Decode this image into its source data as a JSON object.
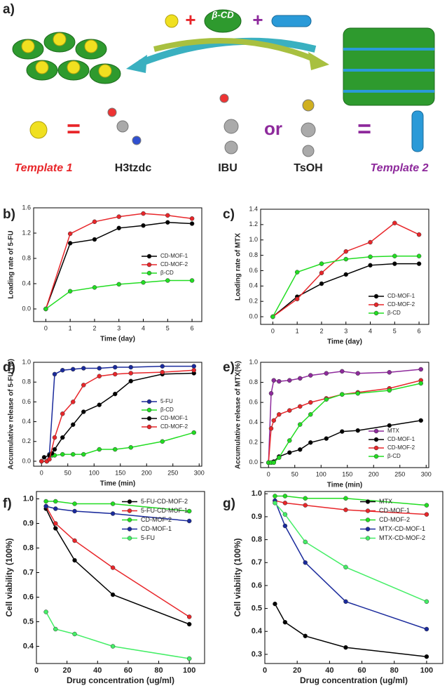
{
  "scheme": {
    "panel": "a)",
    "cd_label": "β-CD",
    "plus_1": "+",
    "plus_2": "+",
    "equals_1": "=",
    "equals_2": "=",
    "molecule_1": "H3tzdc",
    "molecule_2": "IBU",
    "or": "or",
    "molecule_3": "TsOH",
    "template_1": "Template 1",
    "template_2": "Template 2"
  },
  "chart_data": [
    {
      "type": "line",
      "panel": "b)",
      "x_label": "Time (day)",
      "y_label": "Loading rate of 5-FU",
      "x": [
        0,
        1,
        2,
        3,
        4,
        5,
        6
      ],
      "xlim": [
        -0.5,
        6.4
      ],
      "xticks": [
        0,
        1,
        2,
        3,
        4,
        5,
        6
      ],
      "ylim": [
        -0.2,
        1.6
      ],
      "yticks": [
        {
          "value": 0,
          "label": "0.0"
        },
        0.4,
        0.8,
        1.2,
        1.6
      ],
      "legend": "center right",
      "series": [
        {
          "name": "CD-MOF-1",
          "color": "#000000",
          "values": [
            0,
            1.04,
            1.1,
            1.28,
            1.32,
            1.37,
            1.35
          ]
        },
        {
          "name": "CD-MOF-2",
          "color": "#e8262a",
          "values": [
            0,
            1.19,
            1.38,
            1.46,
            1.51,
            1.48,
            1.43
          ]
        },
        {
          "name": "β-CD",
          "color": "#22dd22",
          "values": [
            0,
            0.28,
            0.34,
            0.39,
            0.42,
            0.45,
            0.45
          ]
        }
      ]
    },
    {
      "type": "line",
      "panel": "c)",
      "x_label": "Time (day)",
      "y_label": "Loading rate of MTX",
      "x": [
        0,
        1,
        2,
        3,
        4,
        5,
        6
      ],
      "xlim": [
        -0.5,
        6.4
      ],
      "xticks": [
        0,
        1,
        2,
        3,
        4,
        5,
        6
      ],
      "ylim": [
        -0.1,
        1.4
      ],
      "yticks": [
        {
          "value": 0,
          "label": "0.0"
        },
        0.2,
        0.4,
        0.6,
        0.8,
        {
          "value": 1,
          "label": "1.0"
        },
        1.2,
        1.4
      ],
      "legend": "lower right",
      "series": [
        {
          "name": "CD-MOF-1",
          "color": "#000000",
          "values": [
            0,
            0.26,
            0.43,
            0.55,
            0.67,
            0.69,
            0.69
          ]
        },
        {
          "name": "CD-MOF-2",
          "color": "#e8262a",
          "values": [
            0,
            0.23,
            0.57,
            0.85,
            0.97,
            1.22,
            1.07
          ]
        },
        {
          "name": "β-CD",
          "color": "#22dd22",
          "values": [
            0,
            0.58,
            0.69,
            0.75,
            0.78,
            0.79,
            0.79
          ]
        }
      ]
    },
    {
      "type": "line",
      "panel": "d)",
      "x_label": "Time (min)",
      "y_label": "Accumulative release of 5-FU (%)",
      "xlim": [
        -15,
        305
      ],
      "xticks": [
        0,
        50,
        100,
        150,
        200,
        250,
        300
      ],
      "ylim": [
        -0.05,
        1.0
      ],
      "yticks": [
        {
          "value": 0,
          "label": "0.0"
        },
        0.2,
        0.4,
        0.6,
        0.8,
        {
          "value": 1,
          "label": "1.0"
        }
      ],
      "legend": "center right",
      "series": [
        {
          "name": "5-FU",
          "color": "#1a2a9c",
          "x": [
            0,
            10,
            15,
            25,
            40,
            60,
            80,
            110,
            140,
            170,
            230,
            290
          ],
          "values": [
            0,
            0,
            0.07,
            0.88,
            0.92,
            0.93,
            0.94,
            0.94,
            0.95,
            0.95,
            0.96,
            0.96
          ]
        },
        {
          "name": "β-CD",
          "color": "#22dd22",
          "x": [
            0,
            10,
            20,
            25,
            40,
            60,
            80,
            110,
            140,
            170,
            230,
            290
          ],
          "values": [
            0,
            0,
            0.06,
            0.06,
            0.07,
            0.07,
            0.07,
            0.12,
            0.12,
            0.14,
            0.2,
            0.29
          ]
        },
        {
          "name": "CD-MOF-1",
          "color": "#000000",
          "x": [
            5,
            15,
            20,
            25,
            40,
            60,
            80,
            110,
            140,
            170,
            230,
            290
          ],
          "values": [
            0.04,
            0.06,
            0.08,
            0.12,
            0.24,
            0.37,
            0.5,
            0.57,
            0.68,
            0.81,
            0.88,
            0.89
          ]
        },
        {
          "name": "CD-MOF-2",
          "color": "#e8262a",
          "x": [
            0,
            10,
            15,
            25,
            40,
            60,
            80,
            110,
            140,
            170,
            230,
            290
          ],
          "values": [
            0,
            0,
            0.02,
            0.24,
            0.48,
            0.6,
            0.77,
            0.86,
            0.88,
            0.89,
            0.9,
            0.92
          ]
        }
      ]
    },
    {
      "type": "line",
      "panel": "e)",
      "x_label": "Time (min)",
      "y_label": "Accumulative release of MTX(%)",
      "x": [
        0,
        5,
        10,
        20,
        40,
        60,
        80,
        110,
        140,
        170,
        230,
        290
      ],
      "xlim": [
        -15,
        305
      ],
      "xticks": [
        0,
        50,
        100,
        150,
        200,
        250,
        300
      ],
      "ylim": [
        -0.05,
        1.0
      ],
      "yticks": [
        {
          "value": 0,
          "label": "0.0"
        },
        0.2,
        0.4,
        0.6,
        0.8,
        {
          "value": 1,
          "label": "1.0"
        }
      ],
      "legend": "lower right",
      "series": [
        {
          "name": "MTX",
          "color": "#8e2a9c",
          "values": [
            0,
            0.69,
            0.82,
            0.81,
            0.82,
            0.84,
            0.87,
            0.89,
            0.91,
            0.89,
            0.9,
            0.93
          ]
        },
        {
          "name": "CD-MOF-1",
          "color": "#000000",
          "values": [
            0,
            0,
            0.01,
            0.06,
            0.1,
            0.13,
            0.2,
            0.24,
            0.31,
            0.32,
            0.37,
            0.42
          ]
        },
        {
          "name": "CD-MOF-2",
          "color": "#e8262a",
          "values": [
            0,
            0.34,
            0.42,
            0.48,
            0.52,
            0.56,
            0.6,
            0.64,
            0.68,
            0.7,
            0.74,
            0.82
          ]
        },
        {
          "name": "β-CD",
          "color": "#22dd22",
          "values": [
            0,
            0,
            0,
            0.05,
            0.22,
            0.38,
            0.48,
            0.63,
            0.68,
            0.69,
            0.72,
            0.79
          ]
        }
      ]
    },
    {
      "type": "line",
      "panel": "f)",
      "x_label": "Drug concentration (ug/ml)",
      "y_label": "Cell viability (100%)",
      "x": [
        6.25,
        12.5,
        25,
        50,
        100
      ],
      "xlim": [
        0,
        110
      ],
      "xticks": [
        0,
        20,
        40,
        60,
        80,
        100
      ],
      "ylim": [
        0.33,
        1.03
      ],
      "yticks": [
        0.4,
        0.5,
        0.6,
        0.7,
        0.8,
        0.9,
        {
          "value": 1,
          "label": "1.0"
        }
      ],
      "legend": "upper right",
      "series": [
        {
          "name": "5-FU-CD-MOF-2",
          "color": "#000000",
          "values": [
            0.96,
            0.88,
            0.75,
            0.61,
            0.49
          ]
        },
        {
          "name": "5-FU-CD-MOF-1",
          "color": "#e8262a",
          "values": [
            0.97,
            0.9,
            0.83,
            0.72,
            0.52
          ]
        },
        {
          "name": "CD-MOF-2",
          "color": "#22dd22",
          "values": [
            0.99,
            0.99,
            0.98,
            0.98,
            0.95
          ]
        },
        {
          "name": "CD-MOF-1",
          "color": "#1a2a9c",
          "values": [
            0.97,
            0.96,
            0.95,
            0.94,
            0.91
          ]
        },
        {
          "name": "5-FU",
          "color": "#44ee66",
          "values": [
            0.54,
            0.47,
            0.45,
            0.4,
            0.35
          ]
        }
      ]
    },
    {
      "type": "line",
      "panel": "g)",
      "x_label": "Drug concentration (ug/ml)",
      "y_label": "Cell viability (100%)",
      "x": [
        6.25,
        12.5,
        25,
        50,
        100
      ],
      "xlim": [
        0,
        110
      ],
      "xticks": [
        0,
        20,
        40,
        60,
        80,
        100
      ],
      "ylim": [
        0.26,
        1.01
      ],
      "yticks": [
        0.3,
        0.4,
        0.5,
        0.6,
        0.7,
        0.8,
        0.9,
        {
          "value": 1,
          "label": "1.0"
        }
      ],
      "legend": "upper right",
      "series": [
        {
          "name": "MTX",
          "color": "#000000",
          "values": [
            0.52,
            0.44,
            0.38,
            0.33,
            0.29
          ]
        },
        {
          "name": "CD-MOF-1",
          "color": "#e8262a",
          "values": [
            0.97,
            0.96,
            0.95,
            0.93,
            0.91
          ]
        },
        {
          "name": "CD-MOF-2",
          "color": "#22dd22",
          "values": [
            0.99,
            0.99,
            0.98,
            0.98,
            0.95
          ]
        },
        {
          "name": "MTX-CD-MOF-1",
          "color": "#1a2a9c",
          "values": [
            0.97,
            0.86,
            0.7,
            0.53,
            0.41
          ]
        },
        {
          "name": "MTX-CD-MOF-2",
          "color": "#44ee66",
          "values": [
            0.96,
            0.91,
            0.79,
            0.68,
            0.53
          ]
        }
      ]
    }
  ]
}
